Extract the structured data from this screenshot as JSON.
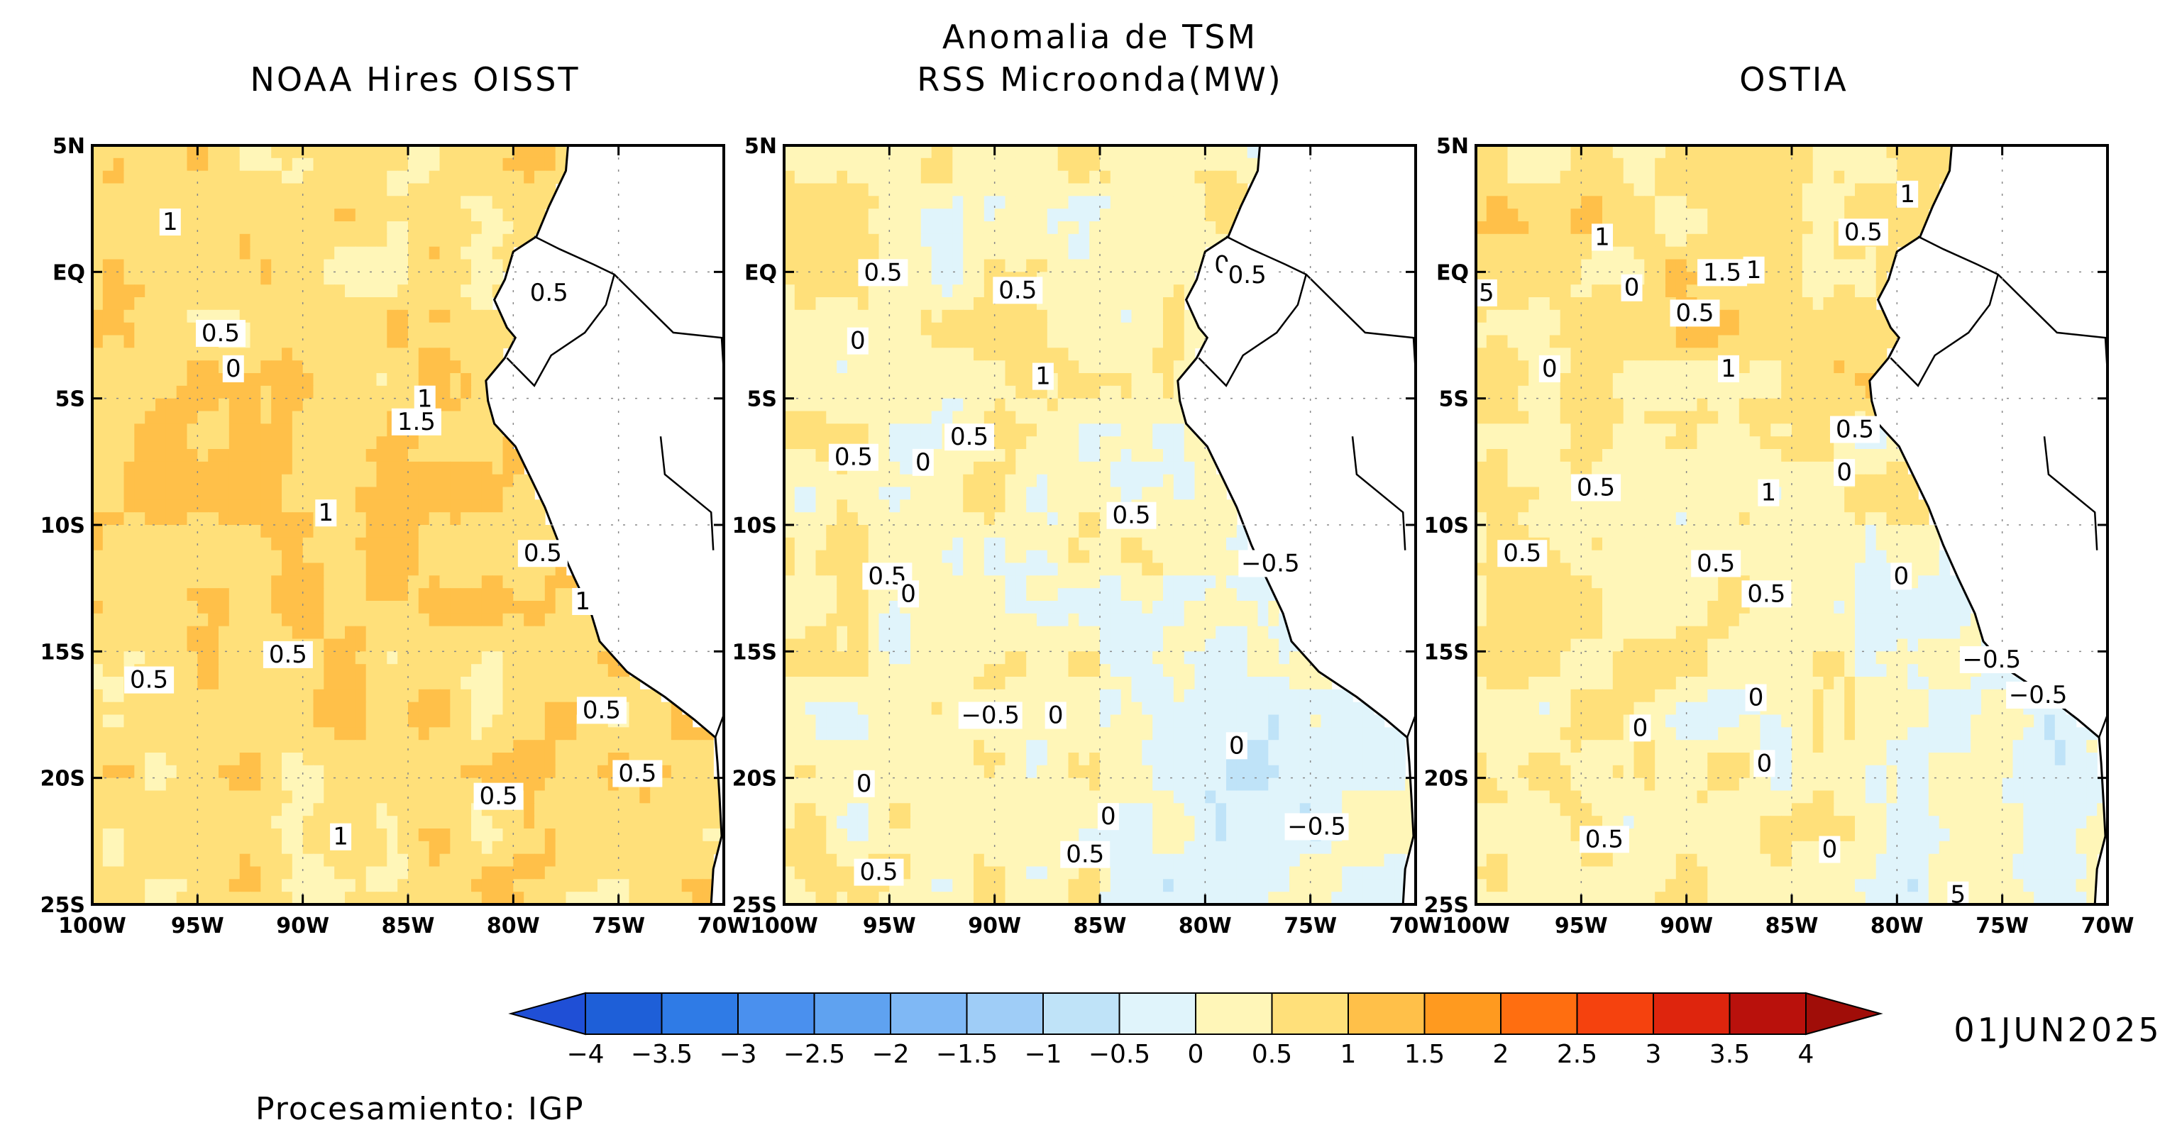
{
  "main_title": [
    "Anomalia de TSM",
    "RSS Microonda(MW)"
  ],
  "panels": [
    {
      "title": "NOAA Hires OISST",
      "tone": "warm",
      "labels": [
        {
          "t": "1",
          "lon": -96.3,
          "lat": 2.0
        },
        {
          "t": "0.5",
          "lon": -78.3,
          "lat": -0.8
        },
        {
          "t": "0.5",
          "lon": -93.9,
          "lat": -2.4
        },
        {
          "t": "0",
          "lon": -93.3,
          "lat": -3.8
        },
        {
          "t": "1",
          "lon": -84.2,
          "lat": -5.0
        },
        {
          "t": "1.5",
          "lon": -84.6,
          "lat": -5.9
        },
        {
          "t": "1",
          "lon": -88.9,
          "lat": -9.5
        },
        {
          "t": "0.5",
          "lon": -78.6,
          "lat": -11.1
        },
        {
          "t": "1",
          "lon": -76.7,
          "lat": -13.0
        },
        {
          "t": "0.5",
          "lon": -90.7,
          "lat": -15.1
        },
        {
          "t": "0.5",
          "lon": -97.3,
          "lat": -16.1
        },
        {
          "t": "0.5",
          "lon": -75.8,
          "lat": -17.3
        },
        {
          "t": "0.5",
          "lon": -74.1,
          "lat": -19.8
        },
        {
          "t": "0.5",
          "lon": -80.7,
          "lat": -20.7
        },
        {
          "t": "1",
          "lon": -88.2,
          "lat": -22.3
        }
      ]
    },
    {
      "title": "",
      "tone": "mixed",
      "labels": [
        {
          "t": "0.5",
          "lon": -95.3,
          "lat": 0.0
        },
        {
          "t": "0.5",
          "lon": -88.9,
          "lat": -0.7
        },
        {
          "t": "0",
          "lon": -79.2,
          "lat": 0.3
        },
        {
          "t": "0.5",
          "lon": -78.0,
          "lat": -0.1
        },
        {
          "t": "0",
          "lon": -96.5,
          "lat": -2.7
        },
        {
          "t": "1",
          "lon": -87.7,
          "lat": -4.1
        },
        {
          "t": "0.5",
          "lon": -96.7,
          "lat": -7.3
        },
        {
          "t": "0",
          "lon": -93.4,
          "lat": -7.5
        },
        {
          "t": "0.5",
          "lon": -91.2,
          "lat": -6.5
        },
        {
          "t": "0.5",
          "lon": -83.5,
          "lat": -9.6
        },
        {
          "t": "-0.5",
          "lon": -76.9,
          "lat": -11.5
        },
        {
          "t": "0.5",
          "lon": -95.1,
          "lat": -12.0
        },
        {
          "t": "0",
          "lon": -94.1,
          "lat": -12.7
        },
        {
          "t": "-0.5",
          "lon": -90.2,
          "lat": -17.5
        },
        {
          "t": "0",
          "lon": -87.1,
          "lat": -17.5
        },
        {
          "t": "0",
          "lon": -78.5,
          "lat": -18.7
        },
        {
          "t": "0",
          "lon": -96.2,
          "lat": -20.2
        },
        {
          "t": "0",
          "lon": -84.6,
          "lat": -21.5
        },
        {
          "t": "-0.5",
          "lon": -74.7,
          "lat": -21.9
        },
        {
          "t": "0.5",
          "lon": -85.7,
          "lat": -23.0
        },
        {
          "t": "0.5",
          "lon": -95.5,
          "lat": -23.7
        }
      ]
    },
    {
      "title": "OSTIA",
      "tone": "cool",
      "labels": [
        {
          "t": "1",
          "lon": -79.5,
          "lat": 3.1
        },
        {
          "t": "0.5",
          "lon": -81.6,
          "lat": 1.6
        },
        {
          "t": "1",
          "lon": -94.0,
          "lat": 1.4
        },
        {
          "t": "1.5",
          "lon": -88.3,
          "lat": 0.0
        },
        {
          "t": "1",
          "lon": -86.8,
          "lat": 0.1
        },
        {
          "t": "0",
          "lon": -92.6,
          "lat": -0.6
        },
        {
          "t": "5",
          "lon": -99.5,
          "lat": -0.8
        },
        {
          "t": "0.5",
          "lon": -89.6,
          "lat": -1.6
        },
        {
          "t": "1",
          "lon": -88.0,
          "lat": -3.8
        },
        {
          "t": "0",
          "lon": -96.5,
          "lat": -3.8
        },
        {
          "t": "0.5",
          "lon": -82.0,
          "lat": -6.2
        },
        {
          "t": "0",
          "lon": -82.5,
          "lat": -7.9
        },
        {
          "t": "0.5",
          "lon": -94.3,
          "lat": -8.5
        },
        {
          "t": "1",
          "lon": -86.1,
          "lat": -8.7
        },
        {
          "t": "0.5",
          "lon": -97.8,
          "lat": -11.1
        },
        {
          "t": "0.5",
          "lon": -88.6,
          "lat": -11.5
        },
        {
          "t": "0.5",
          "lon": -86.2,
          "lat": -12.7
        },
        {
          "t": "0",
          "lon": -79.8,
          "lat": -12.0
        },
        {
          "t": "-0.5",
          "lon": -75.5,
          "lat": -15.3
        },
        {
          "t": "-0.5",
          "lon": -73.3,
          "lat": -16.7
        },
        {
          "t": "0",
          "lon": -86.7,
          "lat": -16.8
        },
        {
          "t": "0",
          "lon": -92.2,
          "lat": -18.0
        },
        {
          "t": "0",
          "lon": -86.3,
          "lat": -19.4
        },
        {
          "t": "0.5",
          "lon": -93.9,
          "lat": -22.4
        },
        {
          "t": "0",
          "lon": -83.2,
          "lat": -22.8
        },
        {
          "t": "5",
          "lon": -77.1,
          "lat": -24.6
        }
      ]
    }
  ],
  "axes": {
    "lat_ticks": [
      "5N",
      "EQ",
      "5S",
      "10S",
      "15S",
      "20S",
      "25S"
    ],
    "lon_ticks": [
      "100W",
      "95W",
      "90W",
      "85W",
      "80W",
      "75W",
      "70W"
    ],
    "lat_range": [
      -25,
      5
    ],
    "lon_range": [
      -100,
      -70
    ]
  },
  "colorbar": {
    "ticks": [
      "−4",
      "−3.5",
      "−3",
      "−2.5",
      "−2",
      "−1.5",
      "−1",
      "−0.5",
      "0",
      "0.5",
      "1",
      "1.5",
      "2",
      "2.5",
      "3",
      "3.5",
      "4"
    ],
    "colors": [
      "#1e5fd8",
      "#2f7be6",
      "#4a90ee",
      "#5fa2f0",
      "#7fb8f5",
      "#9fcdf7",
      "#bfe3f8",
      "#e0f4fb",
      "#fff6b8",
      "#ffe07a",
      "#ffc049",
      "#ff9a1f",
      "#ff6e10",
      "#f5420e",
      "#de250d",
      "#b9110c"
    ],
    "low_extend_color": "#1f4fd6",
    "high_extend_color": "#a00d08"
  },
  "date": "01JUN2025",
  "credit": "Procesamiento: IGP"
}
